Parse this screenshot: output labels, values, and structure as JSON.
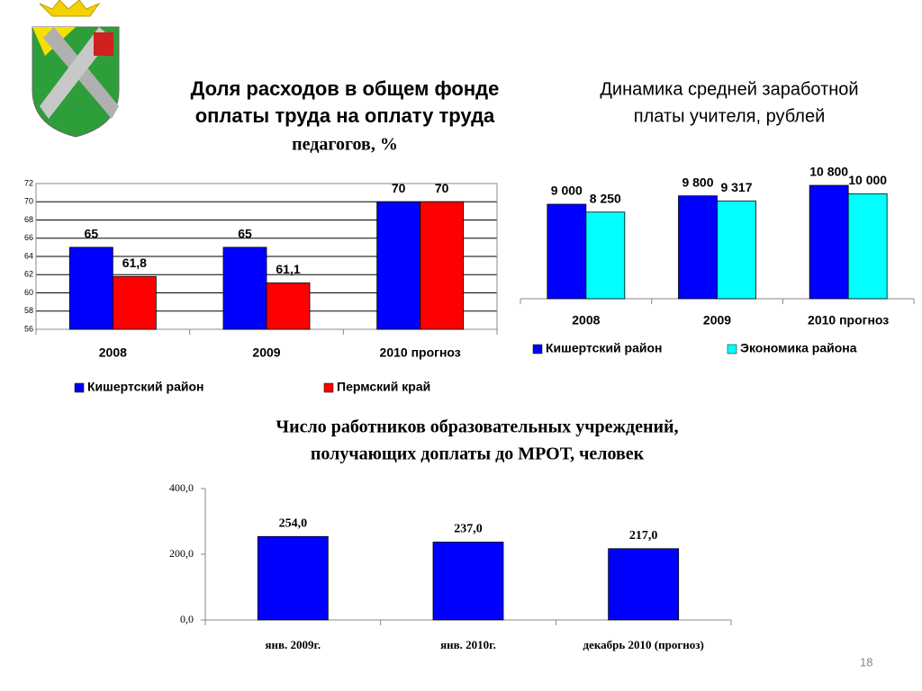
{
  "chart_data": [
    {
      "type": "bar",
      "title": [
        "Доля расходов в общем фонде",
        "оплаты труда на оплату труда",
        "педагогов, %"
      ],
      "categories": [
        "2008",
        "2009",
        "2010 прогноз"
      ],
      "series": [
        {
          "name": "Кишертский район",
          "color": "#0000ff",
          "values": [
            65,
            65,
            70
          ],
          "value_labels": [
            "65",
            "65",
            "70"
          ]
        },
        {
          "name": "Пермский край",
          "color": "#ff0000",
          "values": [
            61.8,
            61.1,
            70
          ],
          "value_labels": [
            "61,8",
            "61,1",
            "70"
          ]
        }
      ],
      "ylim": [
        56,
        72
      ],
      "yticks": [
        56,
        58,
        60,
        62,
        64,
        66,
        68,
        70,
        72
      ],
      "grid": true,
      "legend": "bottom"
    },
    {
      "type": "bar",
      "title": [
        "Динамика средней заработной",
        "платы учителя, рублей"
      ],
      "categories": [
        "2008",
        "2009",
        "2010 прогноз"
      ],
      "series": [
        {
          "name": "Кишертский район",
          "color": "#0000ff",
          "values": [
            9000,
            9800,
            10800
          ],
          "value_labels": [
            "9 000",
            "9 800",
            "10 800"
          ]
        },
        {
          "name": "Экономика района",
          "color": "#00ffff",
          "values": [
            8250,
            9317,
            10000
          ],
          "value_labels": [
            "8 250",
            "9 317",
            "10 000"
          ]
        }
      ],
      "ylim": [
        0,
        12000
      ],
      "grid": false,
      "legend": "bottom"
    },
    {
      "type": "bar",
      "title": [
        "Число работников образовательных учреждений,",
        "получающих доплаты до МРОТ, человек"
      ],
      "categories": [
        "янв. 2009г.",
        "янв. 2010г.",
        "декабрь 2010 (прогноз)"
      ],
      "series": [
        {
          "color": "#0000ff",
          "values": [
            254,
            237,
            217
          ],
          "value_labels": [
            "254,0",
            "237,0",
            "217,0"
          ]
        }
      ],
      "ylim": [
        0,
        400
      ],
      "yticks": [
        {
          "value": 0,
          "label": "0,0"
        },
        {
          "value": 200,
          "label": "200,0"
        },
        {
          "value": 400,
          "label": "400,0"
        }
      ],
      "grid": false
    }
  ],
  "page_number": "18"
}
